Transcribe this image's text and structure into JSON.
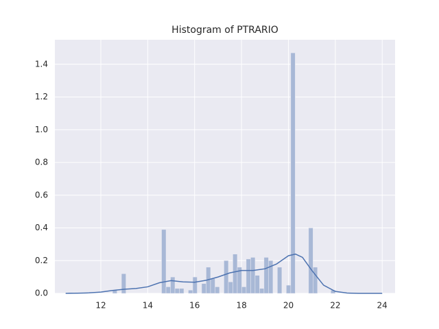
{
  "chart_data": {
    "type": "histogram",
    "title": "Histogram of PTRARIO",
    "bins": [
      10.6,
      10.79,
      10.98,
      11.17,
      11.36,
      11.55,
      11.74,
      11.93,
      12.12,
      12.31,
      12.5,
      12.69,
      12.88,
      13.07,
      13.26,
      13.45,
      13.64,
      13.83,
      14.02,
      14.21,
      14.4,
      14.59,
      14.78,
      14.97,
      15.16,
      15.35,
      15.54,
      15.73,
      15.92,
      16.11,
      16.3,
      16.49,
      16.68,
      16.87,
      17.06,
      17.25,
      17.44,
      17.63,
      17.82,
      18.01,
      18.2,
      18.39,
      18.58,
      18.77,
      18.96,
      19.15,
      19.34,
      19.53,
      19.72,
      19.91,
      20.1,
      20.29,
      20.48,
      20.67,
      20.86,
      21.05,
      21.24,
      21.43,
      21.62,
      21.81,
      22.0
    ],
    "values": [
      0.005,
      0,
      0,
      0,
      0,
      0,
      0,
      0,
      0,
      0,
      0.02,
      0,
      0.12,
      0,
      0,
      0,
      0,
      0,
      0,
      0,
      0,
      0.39,
      0.04,
      0.1,
      0.03,
      0.03,
      0,
      0.02,
      0.1,
      0,
      0.06,
      0.16,
      0.09,
      0.04,
      0,
      0.2,
      0.07,
      0.24,
      0.16,
      0.04,
      0.21,
      0.22,
      0.11,
      0.03,
      0.22,
      0.2,
      0,
      0.16,
      0,
      0.05,
      1.47,
      0,
      0,
      0,
      0.4,
      0.16,
      0,
      0,
      0,
      0.02
    ],
    "color": "#a8b8d6",
    "kde": {
      "x": [
        10.5,
        11,
        11.5,
        12,
        12.5,
        13,
        13.5,
        14,
        14.5,
        15,
        15.5,
        16,
        16.5,
        17,
        17.5,
        18,
        18.5,
        19,
        19.5,
        20,
        20.3,
        20.6,
        21,
        21.5,
        22,
        22.5,
        23,
        24
      ],
      "values": [
        0,
        0.001,
        0.003,
        0.008,
        0.018,
        0.025,
        0.03,
        0.04,
        0.065,
        0.078,
        0.07,
        0.068,
        0.08,
        0.1,
        0.125,
        0.14,
        0.14,
        0.15,
        0.18,
        0.23,
        0.24,
        0.22,
        0.14,
        0.05,
        0.012,
        0.002,
        0,
        0
      ],
      "color": "#4c72b0"
    },
    "xlim": [
      10.04,
      24.55
    ],
    "ylim": [
      0,
      1.55
    ],
    "xticks": [
      12,
      14,
      16,
      18,
      20,
      22,
      24
    ],
    "yticks": [
      {
        "value": 0,
        "label": "0.0"
      },
      {
        "value": 0.2,
        "label": "0.2"
      },
      {
        "value": 0.4,
        "label": "0.4"
      },
      {
        "value": 0.6,
        "label": "0.6"
      },
      {
        "value": 0.8,
        "label": "0.8"
      },
      {
        "value": 1.0,
        "label": "1.0"
      },
      {
        "value": 1.2,
        "label": "1.2"
      },
      {
        "value": 1.4,
        "label": "1.4"
      }
    ],
    "grid": true
  }
}
